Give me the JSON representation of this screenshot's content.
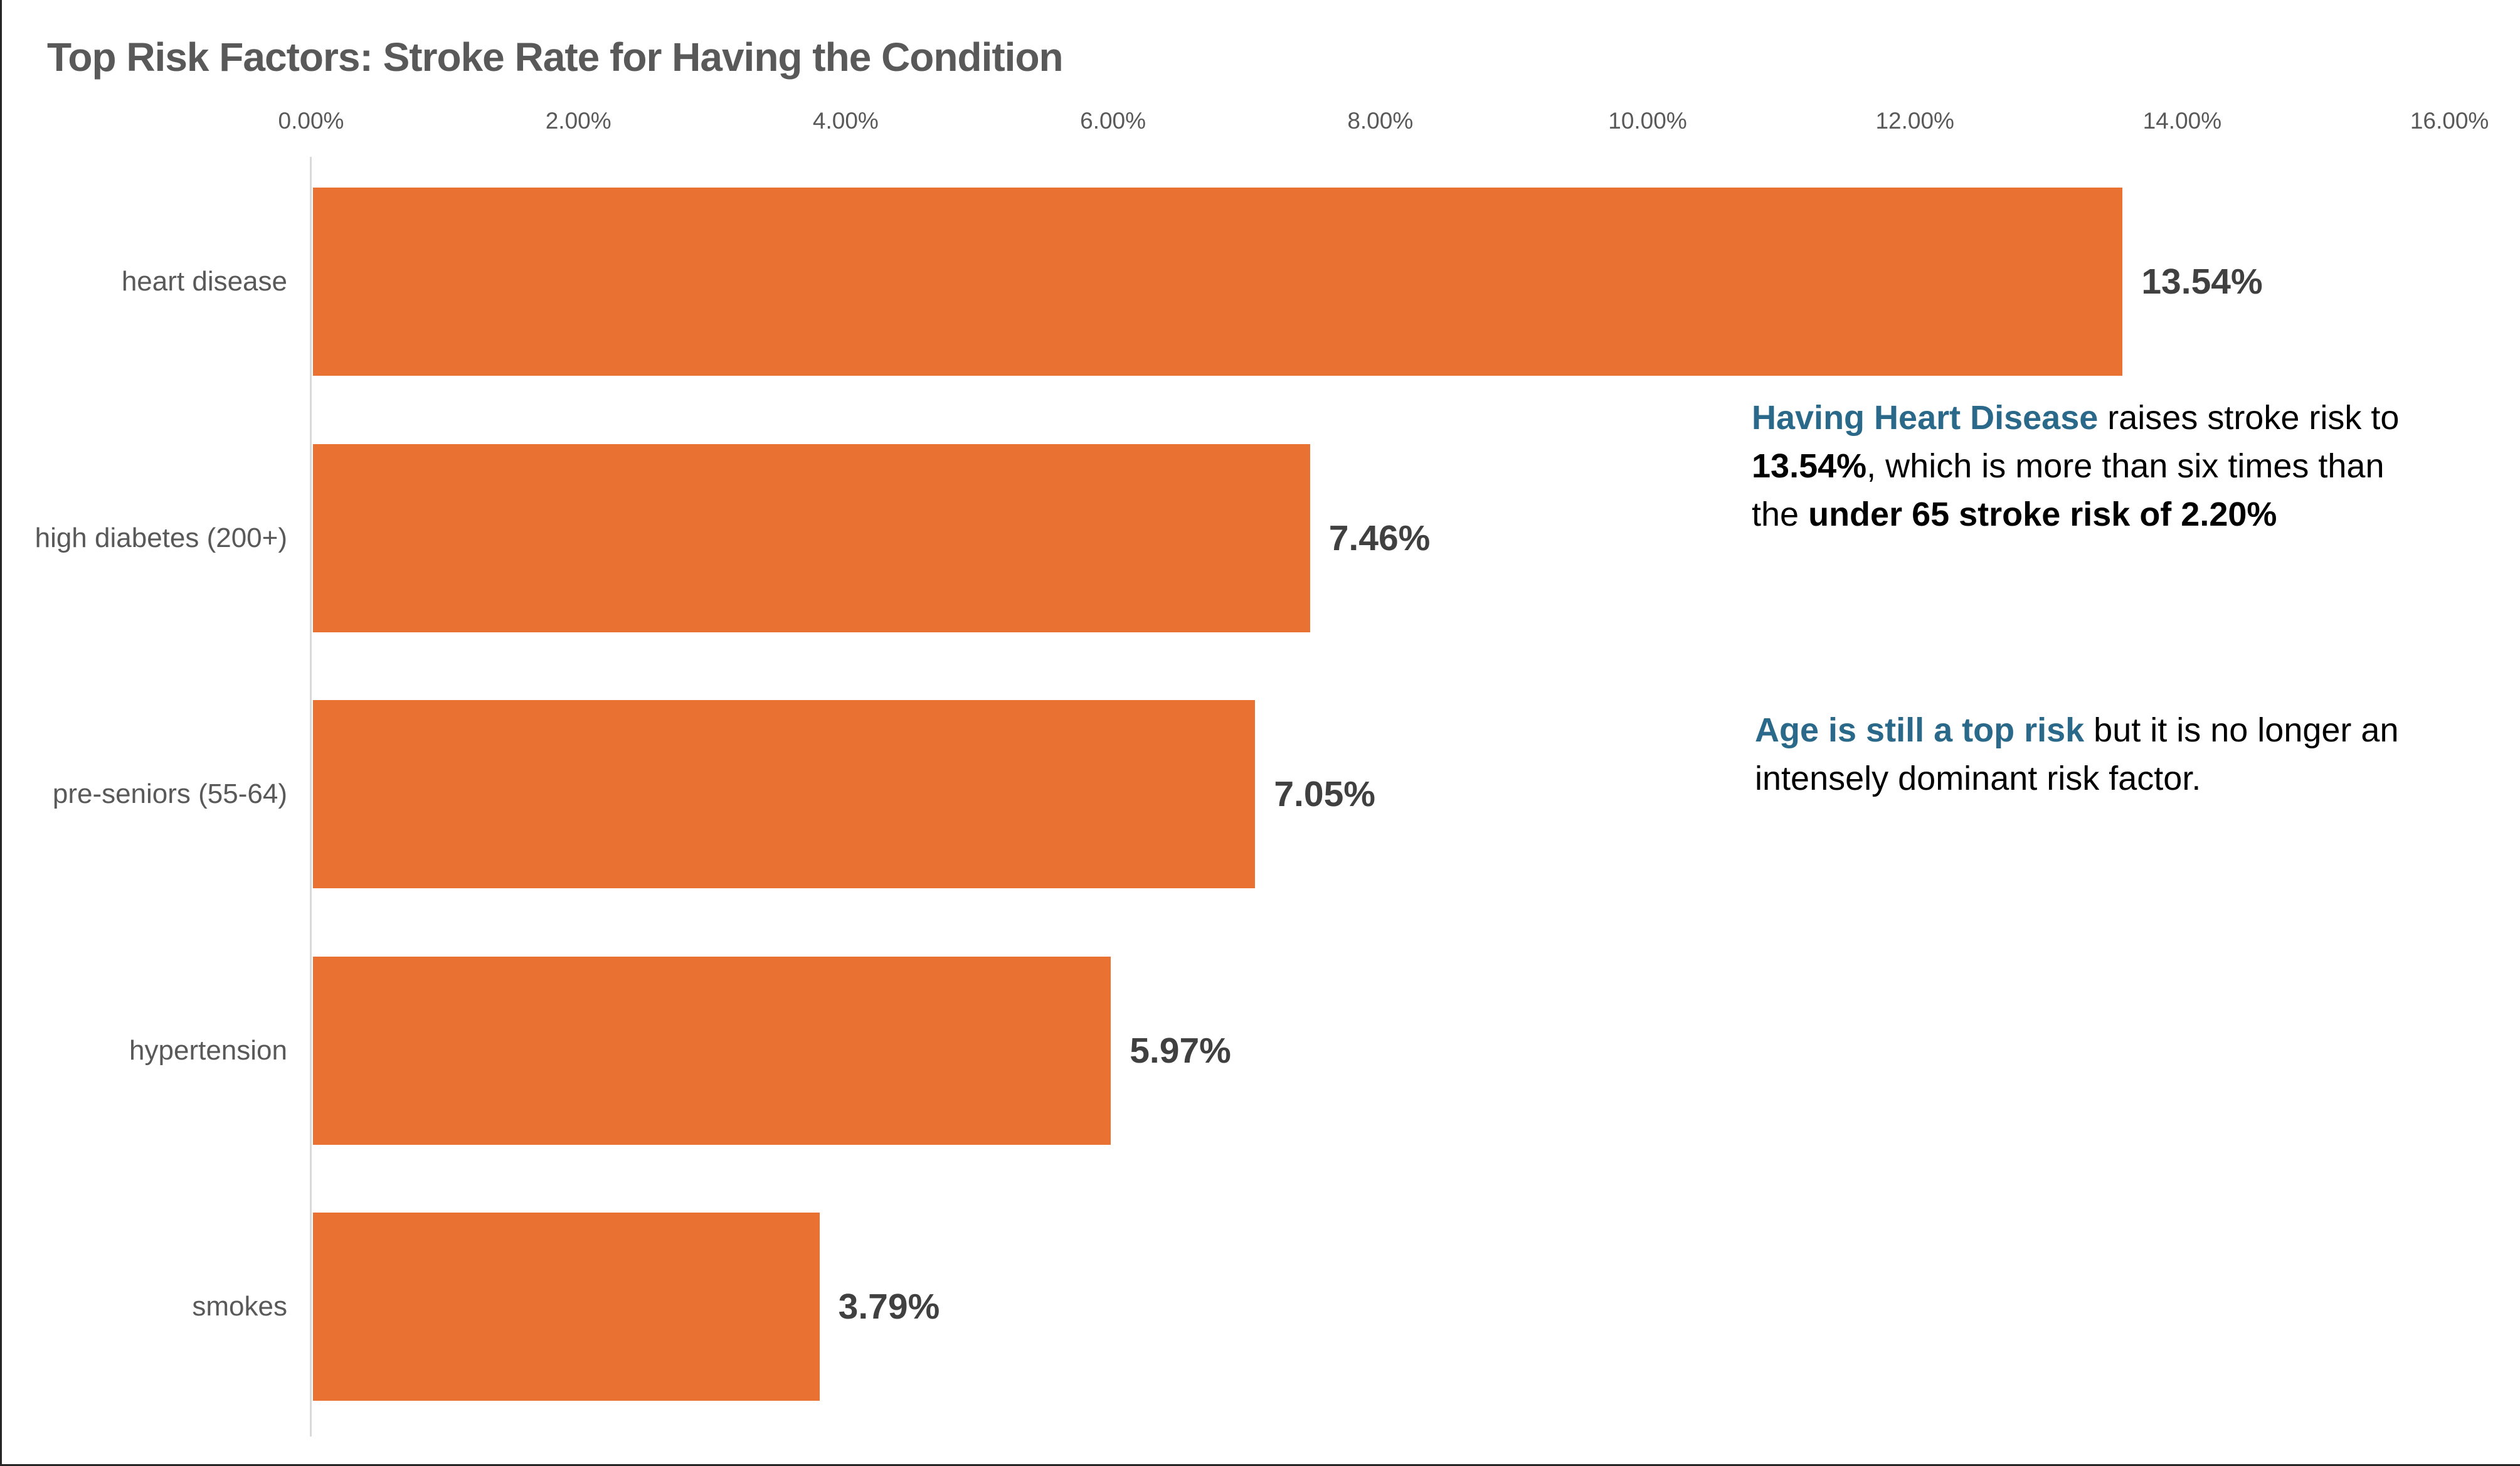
{
  "chart_data": {
    "type": "bar",
    "orientation": "horizontal",
    "title": "Top Risk Factors: Stroke Rate for Having the Condition",
    "categories": [
      "heart disease",
      "high diabetes (200+)",
      "pre-seniors (55-64)",
      "hypertension",
      "smokes"
    ],
    "values": [
      13.54,
      7.46,
      7.05,
      5.97,
      3.79
    ],
    "value_labels": [
      "13.54%",
      "7.46%",
      "7.05%",
      "5.97%",
      "3.79%"
    ],
    "x_ticks": [
      "0.00%",
      "2.00%",
      "4.00%",
      "6.00%",
      "8.00%",
      "10.00%",
      "12.00%",
      "14.00%",
      "16.00%"
    ],
    "x_tick_values": [
      0,
      2,
      4,
      6,
      8,
      10,
      12,
      14,
      16
    ],
    "xlim": [
      0,
      16
    ],
    "grid": false,
    "legend": null
  },
  "annotations": [
    {
      "lines": [
        [
          {
            "t": "Having Heart Disease",
            "style": "blue"
          },
          {
            "t": " raises stroke risk to",
            "style": "plain"
          }
        ],
        [
          {
            "t": "13.54%",
            "style": "bold"
          },
          {
            "t": ", which is more than six times than",
            "style": "plain"
          }
        ],
        [
          {
            "t": "the ",
            "style": "plain"
          },
          {
            "t": "under 65 stroke risk of 2.20%",
            "style": "bold"
          }
        ]
      ]
    },
    {
      "lines": [
        [
          {
            "t": "Age is still a top risk",
            "style": "blue"
          },
          {
            "t": " but it is no longer an",
            "style": "plain"
          }
        ],
        [
          {
            "t": "intensely dominant risk factor.",
            "style": "plain"
          }
        ]
      ]
    }
  ],
  "colors": {
    "bar_fill": "#E97132",
    "axis_line": "#D9D9D9",
    "axis_text": "#595959",
    "title_text": "#595959",
    "value_text": "#404040",
    "annotation_text": "#000000",
    "annotation_accent": "#2A6989"
  }
}
